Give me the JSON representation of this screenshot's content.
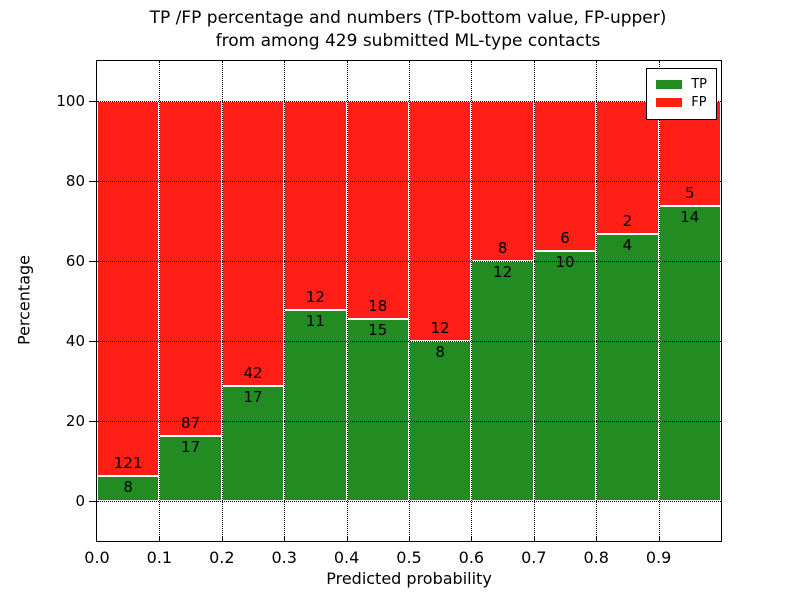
{
  "title": {
    "line1": "TP /FP percentage and numbers (TP-bottom value, FP-upper)",
    "line2": "from among 429 submitted ML-type contacts"
  },
  "axes": {
    "xlabel": "Predicted probability",
    "ylabel": "Percentage",
    "x_ticks": [
      "0.0",
      "0.1",
      "0.2",
      "0.3",
      "0.4",
      "0.5",
      "0.6",
      "0.7",
      "0.8",
      "0.9"
    ],
    "y_ticks": [
      "0",
      "20",
      "40",
      "60",
      "80",
      "100"
    ]
  },
  "legend": {
    "items": [
      {
        "label": "TP",
        "color": "#228b22"
      },
      {
        "label": "FP",
        "color": "#ff1f16"
      }
    ]
  },
  "chart_data": {
    "type": "bar",
    "stacked": true,
    "title": "TP /FP percentage and numbers (TP-bottom value, FP-upper) from among 429 submitted ML-type contacts",
    "xlabel": "Predicted probability",
    "ylabel": "Percentage",
    "xlim": [
      0,
      1
    ],
    "ylim": [
      -10,
      110
    ],
    "grid": true,
    "legend_position": "upper right",
    "total_contacts": 429,
    "bin_width": 0.1,
    "categories": [
      "0.0-0.1",
      "0.1-0.2",
      "0.2-0.3",
      "0.3-0.4",
      "0.4-0.5",
      "0.5-0.6",
      "0.6-0.7",
      "0.7-0.8",
      "0.8-0.9",
      "0.9-1.0"
    ],
    "x_tick_values": [
      0.0,
      0.1,
      0.2,
      0.3,
      0.4,
      0.5,
      0.6,
      0.7,
      0.8,
      0.9
    ],
    "y_tick_values": [
      0,
      20,
      40,
      60,
      80,
      100
    ],
    "series": [
      {
        "name": "TP",
        "color": "#228b22",
        "counts": [
          8,
          17,
          17,
          11,
          15,
          8,
          12,
          10,
          4,
          14
        ],
        "pct": [
          6.2,
          16.35,
          28.81,
          47.83,
          45.45,
          40.0,
          60.0,
          62.5,
          66.67,
          73.68
        ]
      },
      {
        "name": "FP",
        "color": "#ff1f16",
        "counts": [
          121,
          87,
          42,
          12,
          18,
          12,
          8,
          6,
          2,
          5
        ],
        "pct": [
          93.8,
          83.65,
          71.19,
          52.17,
          54.55,
          60.0,
          40.0,
          37.5,
          33.33,
          26.32
        ]
      }
    ]
  }
}
